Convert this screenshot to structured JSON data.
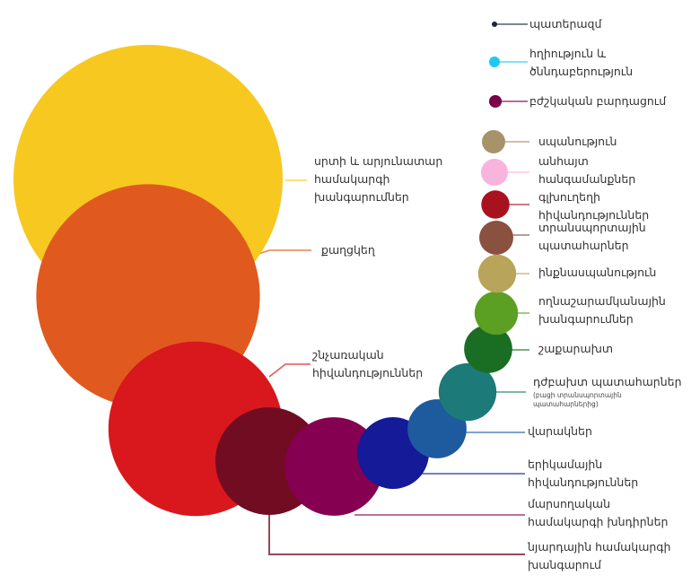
{
  "chart_data": {
    "type": "bubble",
    "value_note": "",
    "items": [
      {
        "label": "սրտի և արյունատար\nհամակարգի\nխանգարումներ",
        "color": "#F7C820",
        "relative_area": 100
      },
      {
        "label": "քաղցկեղ",
        "color": "#E05A20",
        "relative_area": 69
      },
      {
        "label": "շնչառական\nհիվանդություններ",
        "color": "#D8181C",
        "relative_area": 42
      },
      {
        "label": "նյարդային համակարգի\nխանգարում",
        "color": "#720C22",
        "relative_area": 16
      },
      {
        "label": "մարսողական\nհամակարգի խնդիրներ",
        "color": "#850050",
        "relative_area": 13.4
      },
      {
        "label": "երիկամային\nհիվանդություններ",
        "color": "#141A98",
        "relative_area": 7.1
      },
      {
        "label": "վարակներ",
        "color": "#1D5A9E",
        "relative_area": 4.8
      },
      {
        "label": "դժբախտ պատահարներ",
        "sublabel": "(բացի տրանսպորտային\nպատահարներից)",
        "color": "#1C7B78",
        "relative_area": 4.6
      },
      {
        "label": "շաքարախտ",
        "color": "#1A6E24",
        "relative_area": 3.2
      },
      {
        "label": "ողնաշարամկանային\nխանգարումներ",
        "color": "#5BA022",
        "relative_area": 2.6
      },
      {
        "label": "ինքնասպանություն",
        "color": "#B8A45A",
        "relative_area": 2.0
      },
      {
        "label": "տրանսպորտային\nպատահարներ",
        "color": "#8A5040",
        "relative_area": 1.6
      },
      {
        "label": "գլխուղեղի\nհիվանդություններ",
        "color": "#A8121E",
        "relative_area": 1.1
      },
      {
        "label": "անհայտ\nհանգամանքներ",
        "color": "#F8B4DC",
        "relative_area": 1.0
      },
      {
        "label": "սպանություն",
        "color": "#A8926A",
        "relative_area": 0.75
      },
      {
        "label": "բժշկական բարդացում",
        "color": "#7A0048",
        "relative_area": 0.22
      },
      {
        "label": "հղիություն և\nծննդաբերություն",
        "color": "#22C8F4",
        "relative_area": 0.16
      },
      {
        "label": "պատերազմ",
        "color": "#1A2440",
        "relative_area": 0.04
      }
    ]
  }
}
